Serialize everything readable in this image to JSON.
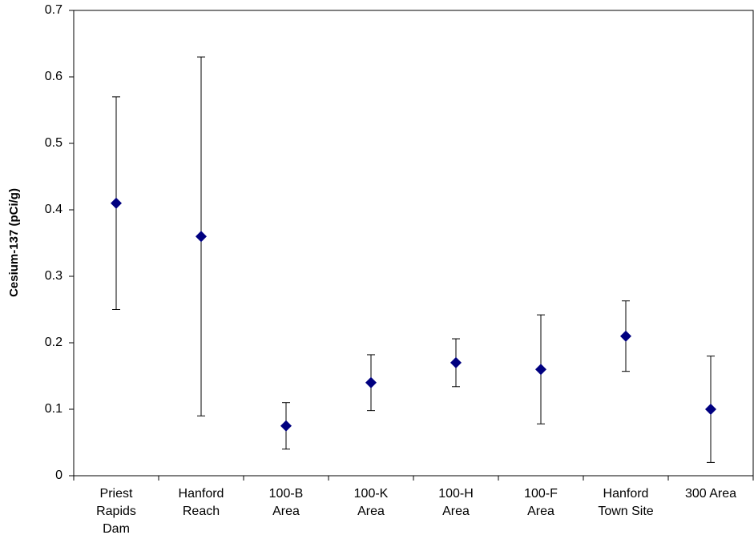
{
  "chart_data": {
    "type": "errorbar",
    "y_label": "Cesium-137 (pCi/g)",
    "categories": [
      "Priest Rapids Dam",
      "Hanford Reach",
      "100-B Area",
      "100-K Area",
      "100-H Area",
      "100-F Area",
      "Hanford Town Site",
      "300 Area"
    ],
    "values": [
      0.41,
      0.36,
      0.075,
      0.14,
      0.17,
      0.16,
      0.21,
      0.1
    ],
    "errors": [
      0.16,
      0.27,
      0.035,
      0.042,
      0.036,
      0.082,
      0.053,
      0.08
    ],
    "color": "#000080",
    "ylim": [
      0,
      0.7
    ],
    "yticks": [
      0,
      0.1,
      0.2,
      0.3,
      0.4,
      0.5,
      0.6,
      0.7
    ]
  }
}
